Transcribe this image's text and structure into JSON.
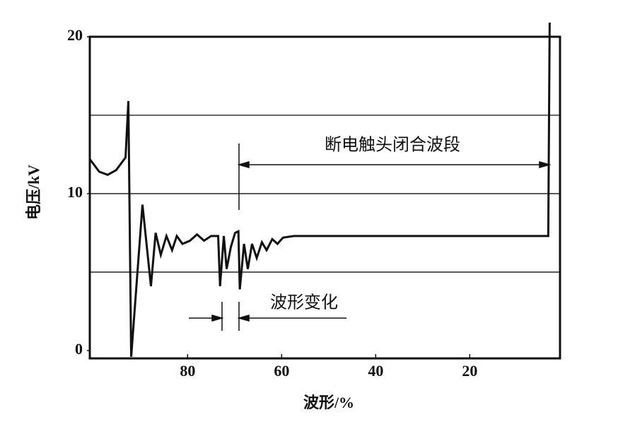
{
  "chart_data": {
    "type": "line",
    "xlabel": "波形/%",
    "ylabel": "电压/kV",
    "xlim": [
      100.8,
      0.8
    ],
    "ylim": [
      -0.5,
      20
    ],
    "xticks": [
      80,
      60,
      40,
      20
    ],
    "yticks": [
      0,
      10,
      20
    ],
    "ygrid": [
      5,
      10,
      15
    ],
    "annotations": [
      "断电触头闭合波段",
      "波形变化"
    ],
    "series": [
      {
        "color": "#111111",
        "x": [
          100.8,
          98.8,
          97.0,
          95.2,
          93.2,
          92.6,
          92.0,
          89.6,
          87.8,
          86.8,
          85.7,
          84.5,
          83.3,
          82.3,
          81.1,
          79.5,
          78.0,
          76.5,
          75.0,
          73.5,
          73.1,
          72.3,
          71.7,
          70.8,
          69.9,
          69.2,
          68.9,
          68.0,
          67.2,
          66.3,
          65.3,
          64.2,
          63.2,
          62.0,
          60.9,
          59.7,
          57.4,
          3.3,
          3.0
        ],
        "values": [
          12.2,
          11.4,
          11.2,
          11.5,
          12.3,
          15.9,
          -0.4,
          9.3,
          4.1,
          7.5,
          6.1,
          7.3,
          6.4,
          7.3,
          6.8,
          7.0,
          7.4,
          7.0,
          7.3,
          7.3,
          4.1,
          7.3,
          5.2,
          6.6,
          7.5,
          7.6,
          3.9,
          6.8,
          5.2,
          6.8,
          5.9,
          6.9,
          6.4,
          7.1,
          6.8,
          7.2,
          7.3,
          7.3,
          20.9
        ]
      }
    ]
  }
}
